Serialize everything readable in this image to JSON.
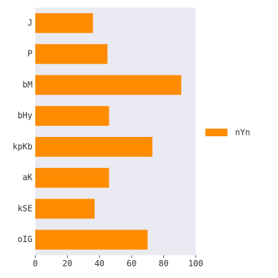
{
  "chart_data": {
    "type": "bar",
    "orientation": "horizontal",
    "categories": [
      "J",
      "P",
      "bM",
      "bHy",
      "kpKb",
      "aK",
      "kSE",
      "oIG"
    ],
    "series": [
      {
        "name": "nYn",
        "values": [
          36,
          45,
          91,
          46,
          73,
          46,
          37,
          70
        ],
        "color": "#ff8c00"
      }
    ],
    "xlim": [
      0,
      100
    ],
    "xticks": [
      0,
      20,
      40,
      60,
      80,
      100
    ],
    "grid": false,
    "legend": {
      "position": "right"
    },
    "colors": {
      "plot_background": "#eaeaf2"
    }
  }
}
